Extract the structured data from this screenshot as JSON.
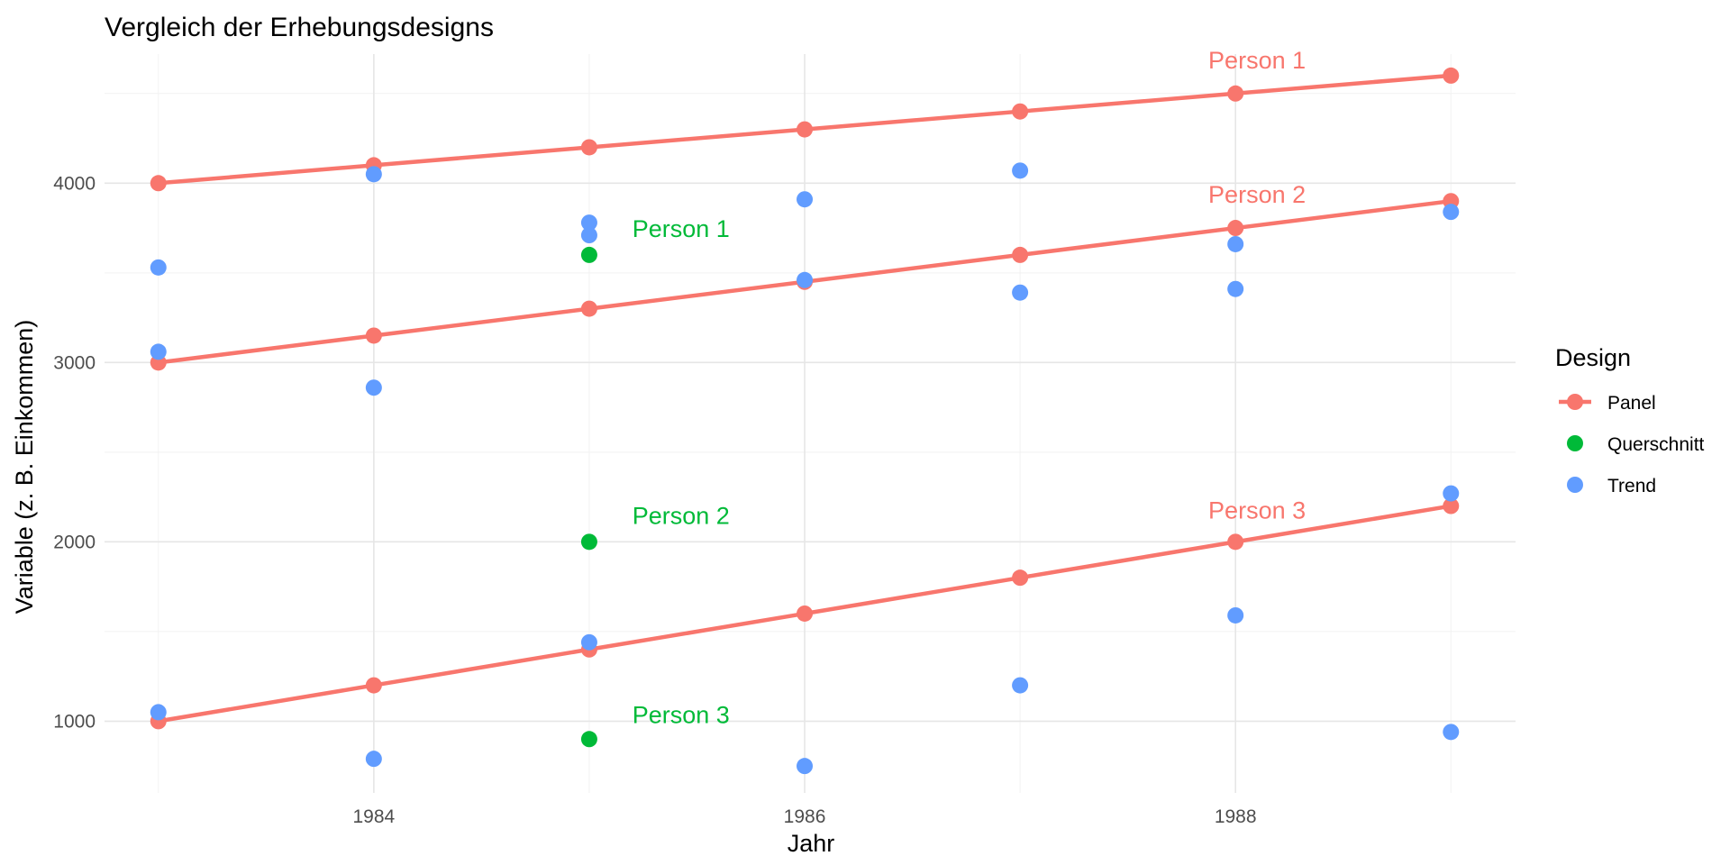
{
  "chart_data": {
    "type": "scatter",
    "title": "Vergleich der Erhebungsdesigns",
    "xlabel": "Jahr",
    "ylabel": "Variable (z. B. Einkommen)",
    "xlim": [
      1982.75,
      1989.3
    ],
    "ylim": [
      600,
      4720
    ],
    "x_ticks": [
      1984,
      1986,
      1988
    ],
    "y_ticks": [
      1000,
      2000,
      3000,
      4000
    ],
    "grid": true,
    "legend": {
      "title": "Design",
      "position": "right",
      "entries": [
        {
          "label": "Panel",
          "color": "#F8766D",
          "marker": "line+point"
        },
        {
          "label": "Querschnitt",
          "color": "#00BA38",
          "marker": "point"
        },
        {
          "label": "Trend",
          "color": "#619CFF",
          "marker": "point"
        }
      ]
    },
    "series": [
      {
        "name": "Panel",
        "color": "#F8766D",
        "line": true,
        "groups": [
          {
            "x": [
              1983,
              1984,
              1985,
              1986,
              1987,
              1988,
              1989
            ],
            "y": [
              4000,
              4100,
              4200,
              4300,
              4400,
              4500,
              4600
            ]
          },
          {
            "x": [
              1983,
              1984,
              1985,
              1986,
              1987,
              1988,
              1989
            ],
            "y": [
              3000,
              3150,
              3300,
              3450,
              3600,
              3750,
              3900
            ]
          },
          {
            "x": [
              1983,
              1984,
              1985,
              1986,
              1987,
              1988,
              1989
            ],
            "y": [
              1000,
              1200,
              1400,
              1600,
              1800,
              2000,
              2200
            ]
          }
        ]
      },
      {
        "name": "Querschnitt",
        "color": "#00BA38",
        "line": false,
        "x": [
          1985,
          1985,
          1985
        ],
        "y": [
          3600,
          2000,
          900
        ]
      },
      {
        "name": "Trend",
        "color": "#619CFF",
        "line": false,
        "x": [
          1983,
          1983,
          1983,
          1984,
          1984,
          1984,
          1985,
          1985,
          1985,
          1986,
          1986,
          1986,
          1987,
          1987,
          1987,
          1988,
          1988,
          1988,
          1989,
          1989,
          1989
        ],
        "y": [
          3530,
          3060,
          1050,
          4050,
          2860,
          790,
          3780,
          3710,
          1440,
          3910,
          3460,
          750,
          4070,
          3390,
          1200,
          3660,
          3410,
          1590,
          3840,
          2270,
          940
        ]
      }
    ],
    "annotations": [
      {
        "text": "Person 1",
        "x": 1988.1,
        "y": 4640,
        "color": "#F8766D",
        "anchor": "middle"
      },
      {
        "text": "Person 2",
        "x": 1988.1,
        "y": 3890,
        "color": "#F8766D",
        "anchor": "middle"
      },
      {
        "text": "Person 3",
        "x": 1988.1,
        "y": 2130,
        "color": "#F8766D",
        "anchor": "middle"
      },
      {
        "text": "Person 1",
        "x": 1985.2,
        "y": 3700,
        "color": "#00BA38",
        "anchor": "start"
      },
      {
        "text": "Person 2",
        "x": 1985.2,
        "y": 2100,
        "color": "#00BA38",
        "anchor": "start"
      },
      {
        "text": "Person 3",
        "x": 1985.2,
        "y": 990,
        "color": "#00BA38",
        "anchor": "start"
      }
    ]
  }
}
